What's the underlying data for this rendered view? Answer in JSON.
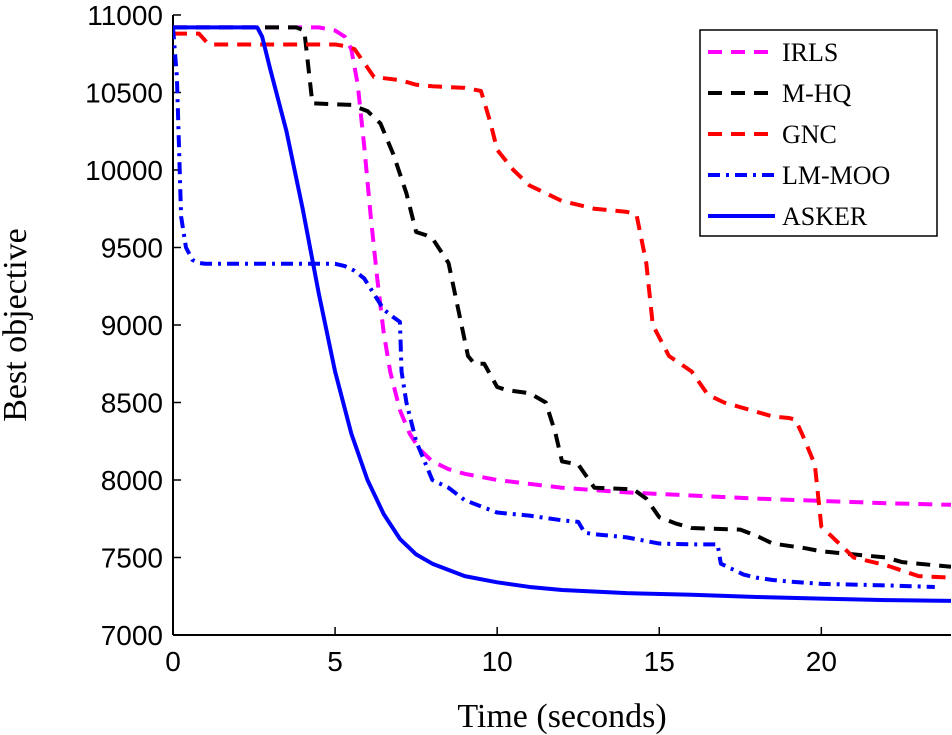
{
  "chart_data": {
    "type": "line",
    "title": "",
    "xlabel": "Time (seconds)",
    "ylabel": "Best objective",
    "xlim": [
      0,
      24
    ],
    "ylim": [
      7000,
      11000
    ],
    "xticks": [
      0,
      5,
      10,
      15,
      20
    ],
    "yticks": [
      7000,
      7500,
      8000,
      8500,
      9000,
      9500,
      10000,
      10500,
      11000
    ],
    "grid": false,
    "legend_position": "top-right",
    "series": [
      {
        "name": "IRLS",
        "color": "#ff00ff",
        "style": "dashed",
        "x": [
          0,
          4.5,
          5.0,
          5.3,
          5.5,
          5.7,
          5.9,
          6.1,
          6.3,
          6.5,
          6.7,
          7.0,
          7.3,
          7.6,
          8.0,
          8.5,
          9.0,
          10.0,
          12.0,
          14.0,
          16.0,
          18.0,
          20.0,
          22.0,
          24.0
        ],
        "y": [
          10920,
          10920,
          10900,
          10860,
          10780,
          10550,
          10150,
          9700,
          9300,
          8950,
          8700,
          8450,
          8300,
          8200,
          8120,
          8070,
          8040,
          8000,
          7950,
          7920,
          7900,
          7880,
          7865,
          7850,
          7840
        ]
      },
      {
        "name": "M-HQ",
        "color": "#000000",
        "style": "dashed",
        "x": [
          0,
          3.8,
          4.05,
          4.3,
          5.5,
          6.0,
          6.4,
          6.8,
          7.2,
          7.5,
          7.8,
          8.0,
          8.5,
          8.8,
          9.1,
          9.3,
          9.6,
          10.0,
          10.3,
          11.0,
          11.5,
          11.8,
          12.0,
          12.5,
          13.0,
          14.2,
          14.6,
          15.0,
          15.5,
          16.0,
          17.5,
          18.0,
          18.5,
          19.5,
          20.0,
          20.5,
          21.0,
          22.0,
          22.5,
          23.5,
          24.0
        ],
        "y": [
          10920,
          10920,
          10900,
          10430,
          10420,
          10380,
          10300,
          10100,
          9850,
          9600,
          9580,
          9560,
          9400,
          9100,
          8800,
          8750,
          8750,
          8600,
          8580,
          8560,
          8500,
          8300,
          8120,
          8100,
          7950,
          7940,
          7880,
          7760,
          7720,
          7690,
          7680,
          7640,
          7590,
          7560,
          7540,
          7530,
          7520,
          7500,
          7470,
          7450,
          7440
        ]
      },
      {
        "name": "GNC",
        "color": "#ff0000",
        "style": "dashed",
        "x": [
          0,
          0.8,
          1.1,
          5.0,
          5.3,
          5.6,
          6.2,
          6.6,
          7.0,
          7.5,
          8.0,
          9.0,
          9.5,
          9.8,
          10.0,
          10.5,
          11.0,
          11.5,
          12.0,
          13.0,
          14.0,
          14.3,
          14.6,
          14.8,
          15.3,
          16.0,
          16.5,
          17.0,
          17.5,
          18.0,
          18.5,
          19.0,
          19.2,
          19.4,
          19.6,
          19.8,
          20.0,
          20.5,
          21.0,
          22.0,
          23.0,
          24.0
        ],
        "y": [
          10880,
          10880,
          10810,
          10810,
          10800,
          10780,
          10600,
          10590,
          10580,
          10550,
          10540,
          10530,
          10510,
          10300,
          10130,
          10000,
          9900,
          9850,
          9800,
          9750,
          9730,
          9710,
          9400,
          9000,
          8800,
          8700,
          8550,
          8500,
          8470,
          8440,
          8410,
          8400,
          8390,
          8300,
          8200,
          8100,
          7700,
          7600,
          7500,
          7450,
          7380,
          7370
        ]
      },
      {
        "name": "LM-MOO",
        "color": "#0000ff",
        "style": "dashdot",
        "x": [
          0,
          0.12,
          0.25,
          0.4,
          0.6,
          0.8,
          1.0,
          2.0,
          3.0,
          4.0,
          5.0,
          5.3,
          5.6,
          5.9,
          6.2,
          6.5,
          6.8,
          7.0,
          7.05,
          7.2,
          7.5,
          7.8,
          8.0,
          8.5,
          9.0,
          9.5,
          10.0,
          11.0,
          12.0,
          12.5,
          12.7,
          13.0,
          14.0,
          14.5,
          15.0,
          16.0,
          16.8,
          16.9,
          17.2,
          17.6,
          18.0,
          18.5,
          19.0,
          20.0,
          22.0,
          23.5
        ],
        "y": [
          10920,
          10600,
          9700,
          9500,
          9420,
          9400,
          9395,
          9395,
          9395,
          9395,
          9395,
          9380,
          9350,
          9300,
          9200,
          9100,
          9050,
          9020,
          8700,
          8500,
          8250,
          8100,
          8000,
          7950,
          7870,
          7830,
          7790,
          7770,
          7740,
          7730,
          7660,
          7650,
          7630,
          7610,
          7590,
          7585,
          7585,
          7460,
          7430,
          7390,
          7370,
          7355,
          7345,
          7330,
          7320,
          7310
        ]
      },
      {
        "name": "ASKER",
        "color": "#0000ff",
        "style": "solid",
        "x": [
          0,
          2.6,
          2.75,
          3.0,
          3.5,
          4.0,
          4.5,
          5.0,
          5.5,
          6.0,
          6.5,
          7.0,
          7.5,
          8.0,
          9.0,
          10.0,
          11.0,
          12.0,
          14.0,
          16.0,
          18.0,
          20.0,
          22.0,
          24.0
        ],
        "y": [
          10920,
          10920,
          10860,
          10650,
          10250,
          9750,
          9200,
          8700,
          8300,
          8000,
          7780,
          7620,
          7520,
          7460,
          7380,
          7340,
          7310,
          7290,
          7270,
          7260,
          7245,
          7235,
          7225,
          7220
        ]
      }
    ]
  }
}
